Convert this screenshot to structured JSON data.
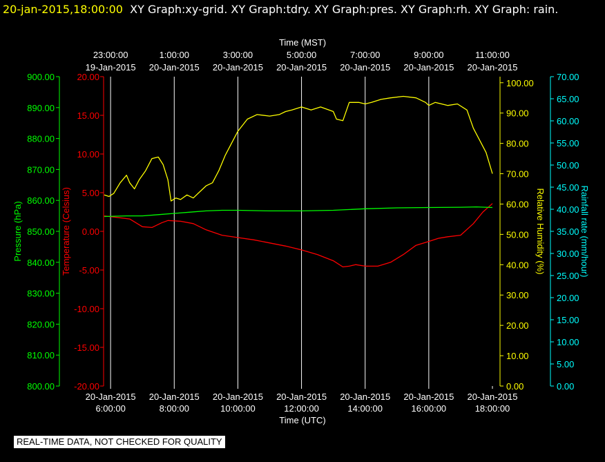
{
  "header": {
    "timestamp": "20-jan-2015,18:00:00",
    "title": "XY Graph:xy-grid.  XY Graph:tdry.  XY Graph:pres.  XY Graph:rh.  XY Graph: rain."
  },
  "footer": {
    "notice": "REAL-TIME DATA, NOT CHECKED FOR QUALITY"
  },
  "chart_data": {
    "type": "line",
    "x_range_utc_hours": [
      5.78,
      18.0
    ],
    "grid": true,
    "background": "#000000",
    "bottom_axis": {
      "title": "Time (UTC)",
      "ticks": [
        {
          "hour": 6,
          "date": "20-Jan-2015",
          "time": "6:00:00"
        },
        {
          "hour": 8,
          "date": "20-Jan-2015",
          "time": "8:00:00"
        },
        {
          "hour": 10,
          "date": "20-Jan-2015",
          "time": "10:00:00"
        },
        {
          "hour": 12,
          "date": "20-Jan-2015",
          "time": "12:00:00"
        },
        {
          "hour": 14,
          "date": "20-Jan-2015",
          "time": "14:00:00"
        },
        {
          "hour": 16,
          "date": "20-Jan-2015",
          "time": "16:00:00"
        },
        {
          "hour": 18,
          "date": "20-Jan-2015",
          "time": "18:00:00"
        }
      ]
    },
    "top_axis": {
      "title": "Time (MST)",
      "ticks": [
        {
          "hour": 6,
          "time": "23:00:00",
          "date": "19-Jan-2015"
        },
        {
          "hour": 8,
          "time": "1:00:00",
          "date": "20-Jan-2015"
        },
        {
          "hour": 10,
          "time": "3:00:00",
          "date": "20-Jan-2015"
        },
        {
          "hour": 12,
          "time": "5:00:00",
          "date": "20-Jan-2015"
        },
        {
          "hour": 14,
          "time": "7:00:00",
          "date": "20-Jan-2015"
        },
        {
          "hour": 16,
          "time": "9:00:00",
          "date": "20-Jan-2015"
        },
        {
          "hour": 18,
          "time": "11:00:00",
          "date": "20-Jan-2015"
        }
      ]
    },
    "y_axes": {
      "pressure": {
        "label": "Pressure (hPa)",
        "color": "#00ff00",
        "range": [
          800,
          900
        ],
        "ticks": [
          "800.00",
          "810.00",
          "820.00",
          "830.00",
          "840.00",
          "850.00",
          "860.00",
          "870.00",
          "880.00",
          "890.00",
          "900.00"
        ]
      },
      "temperature": {
        "label": "Temperature (Celsius)",
        "color": "#ff0000",
        "range": [
          -20,
          20
        ],
        "ticks": [
          "-20.00",
          "-15.00",
          "-10.00",
          "-5.00",
          "0.00",
          "5.00",
          "10.00",
          "15.00",
          "20.00"
        ]
      },
      "humidity": {
        "label": "Relative Humidity (%)",
        "color": "#ffff00",
        "range": [
          0,
          102
        ],
        "ticks": [
          "0.00",
          "10.00",
          "20.00",
          "30.00",
          "40.00",
          "50.00",
          "60.00",
          "70.00",
          "80.00",
          "90.00",
          "100.00"
        ]
      },
      "rain": {
        "label": "Rainfall rate (mm/hour)",
        "color": "#00ffff",
        "range": [
          0,
          70
        ],
        "ticks": [
          "0.00",
          "5.00",
          "10.00",
          "15.00",
          "20.00",
          "25.00",
          "30.00",
          "35.00",
          "40.00",
          "45.00",
          "50.00",
          "55.00",
          "60.00",
          "65.00",
          "70.00"
        ]
      }
    },
    "series": [
      {
        "name": "tdry",
        "axis": "temperature",
        "color": "#ff0000",
        "x": [
          5.8,
          6.2,
          6.6,
          7.0,
          7.3,
          7.6,
          7.8,
          8.2,
          8.6,
          9.0,
          9.5,
          10.0,
          10.5,
          11.0,
          11.5,
          12.0,
          12.5,
          13.0,
          13.3,
          13.5,
          13.7,
          14.0,
          14.4,
          14.8,
          15.2,
          15.6,
          16.0,
          16.3,
          16.6,
          17.0,
          17.4,
          17.7,
          18.0
        ],
        "y": [
          2.0,
          1.8,
          1.6,
          0.6,
          0.5,
          1.1,
          1.4,
          1.3,
          1.0,
          0.2,
          -0.5,
          -0.8,
          -1.1,
          -1.5,
          -1.9,
          -2.4,
          -3.0,
          -3.8,
          -4.6,
          -4.5,
          -4.3,
          -4.5,
          -4.5,
          -4.0,
          -3.0,
          -1.8,
          -1.3,
          -0.9,
          -0.7,
          -0.5,
          1.0,
          2.5,
          3.6
        ]
      },
      {
        "name": "pres",
        "axis": "pressure",
        "color": "#00ff00",
        "x": [
          5.8,
          6.5,
          7.0,
          7.5,
          8.0,
          8.5,
          9.0,
          9.5,
          10.0,
          11.0,
          12.0,
          13.0,
          14.0,
          15.0,
          16.0,
          17.0,
          17.5,
          18.0
        ],
        "y": [
          854.8,
          855.0,
          855.0,
          855.4,
          855.8,
          856.2,
          856.6,
          856.8,
          856.8,
          856.6,
          856.6,
          856.8,
          857.3,
          857.6,
          857.7,
          857.8,
          857.9,
          857.7
        ]
      },
      {
        "name": "rh",
        "axis": "humidity",
        "color": "#ffff00",
        "x": [
          5.8,
          5.95,
          6.1,
          6.3,
          6.5,
          6.6,
          6.75,
          6.9,
          7.1,
          7.3,
          7.5,
          7.65,
          7.8,
          7.9,
          8.05,
          8.2,
          8.4,
          8.6,
          8.8,
          9.0,
          9.2,
          9.4,
          9.6,
          9.8,
          10.0,
          10.3,
          10.6,
          11.0,
          11.3,
          11.5,
          11.7,
          12.0,
          12.3,
          12.6,
          13.0,
          13.1,
          13.3,
          13.5,
          13.8,
          14.0,
          14.2,
          14.5,
          14.8,
          15.2,
          15.6,
          15.9,
          16.0,
          16.2,
          16.6,
          16.9,
          17.2,
          17.4,
          17.6,
          17.8,
          18.0
        ],
        "y": [
          63.0,
          62.5,
          63.5,
          67.0,
          69.5,
          67.0,
          65.0,
          68.0,
          71.0,
          75.0,
          75.5,
          73.0,
          68.0,
          61.0,
          62.0,
          61.5,
          63.0,
          62.0,
          64.0,
          66.0,
          67.0,
          71.0,
          76.0,
          80.0,
          84.0,
          88.0,
          89.5,
          89.0,
          89.5,
          90.5,
          91.0,
          92.0,
          91.0,
          92.0,
          90.5,
          88.0,
          87.5,
          93.5,
          93.5,
          93.0,
          93.5,
          94.5,
          95.0,
          95.5,
          95.0,
          93.5,
          92.5,
          93.5,
          92.5,
          93.0,
          91.0,
          85.0,
          81.0,
          77.0,
          70.0
        ]
      }
    ]
  }
}
